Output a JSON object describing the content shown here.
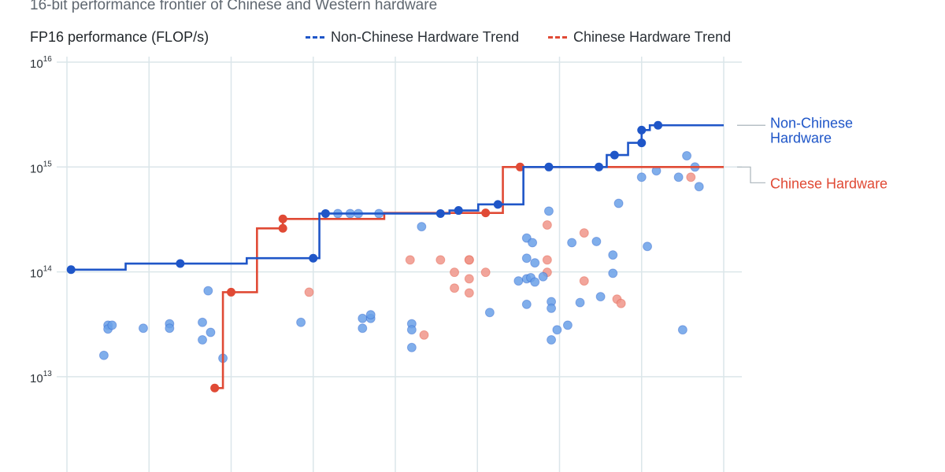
{
  "subtitle": "16-bit performance frontier of Chinese and Western hardware",
  "chart_data": {
    "type": "scatter",
    "subtitle": "16-bit performance frontier of Chinese and Western hardware",
    "ylabel": "FP16 performance (FLOP/s)",
    "yscale": "log",
    "ylim": [
      1000000000000.0,
      1e+16
    ],
    "yticks": [
      {
        "value": 10000000000000.0,
        "base": "10",
        "exp": "13"
      },
      {
        "value": 100000000000000.0,
        "base": "10",
        "exp": "14"
      },
      {
        "value": 1000000000000000.0,
        "base": "10",
        "exp": "15"
      },
      {
        "value": 1e+16,
        "base": "10",
        "exp": "16"
      }
    ],
    "xgrid_count": 9,
    "grid": true,
    "legend": {
      "placement": "top",
      "items": [
        {
          "label": "Non-Chinese Hardware Trend",
          "color": "#1f56c8",
          "style": "dashed"
        },
        {
          "label": "Chinese Hardware Trend",
          "color": "#e04a35",
          "style": "dashed"
        }
      ]
    },
    "series": [
      {
        "name": "Non-Chinese Hardware",
        "end_label": [
          "Non-Chinese",
          "Hardware"
        ],
        "color": "#1f56c8",
        "point_color": "#6aa0e8",
        "frontier": [
          {
            "x": 0.05,
            "y": 105000000000000.0
          },
          {
            "x": 1.38,
            "y": 120000000000000.0
          },
          {
            "x": 3.0,
            "y": 135000000000000.0
          },
          {
            "x": 3.15,
            "y": 360000000000000.0
          },
          {
            "x": 4.55,
            "y": 360000000000000.0
          },
          {
            "x": 4.77,
            "y": 385000000000000.0
          },
          {
            "x": 5.25,
            "y": 440000000000000.0
          },
          {
            "x": 5.87,
            "y": 1000000000000000.0
          },
          {
            "x": 6.48,
            "y": 1000000000000000.0
          },
          {
            "x": 6.67,
            "y": 1300000000000000.0
          },
          {
            "x": 7.0,
            "y": 1700000000000000.0
          },
          {
            "x": 7.0,
            "y": 2250000000000000.0
          },
          {
            "x": 7.2,
            "y": 2500000000000000.0
          }
        ],
        "frontier_end_x": 8.0,
        "points": [
          {
            "x": 0.5,
            "y": 31000000000000.0
          },
          {
            "x": 0.5,
            "y": 28500000000000.0
          },
          {
            "x": 0.55,
            "y": 31000000000000.0
          },
          {
            "x": 0.45,
            "y": 16000000000000.0
          },
          {
            "x": 0.93,
            "y": 29000000000000.0
          },
          {
            "x": 1.25,
            "y": 32000000000000.0
          },
          {
            "x": 1.25,
            "y": 29000000000000.0
          },
          {
            "x": 1.65,
            "y": 33000000000000.0
          },
          {
            "x": 1.65,
            "y": 22500000000000.0
          },
          {
            "x": 1.75,
            "y": 26500000000000.0
          },
          {
            "x": 1.72,
            "y": 66000000000000.0
          },
          {
            "x": 1.9,
            "y": 15000000000000.0
          },
          {
            "x": 2.85,
            "y": 33000000000000.0
          },
          {
            "x": 3.3,
            "y": 360000000000000.0
          },
          {
            "x": 3.45,
            "y": 360000000000000.0
          },
          {
            "x": 3.55,
            "y": 360000000000000.0
          },
          {
            "x": 3.8,
            "y": 360000000000000.0
          },
          {
            "x": 3.6,
            "y": 36000000000000.0
          },
          {
            "x": 3.6,
            "y": 29000000000000.0
          },
          {
            "x": 3.7,
            "y": 36000000000000.0
          },
          {
            "x": 3.7,
            "y": 39000000000000.0
          },
          {
            "x": 4.2,
            "y": 32000000000000.0
          },
          {
            "x": 4.2,
            "y": 28000000000000.0
          },
          {
            "x": 4.2,
            "y": 19000000000000.0
          },
          {
            "x": 4.32,
            "y": 270000000000000.0
          },
          {
            "x": 5.15,
            "y": 41000000000000.0
          },
          {
            "x": 5.5,
            "y": 82000000000000.0
          },
          {
            "x": 5.6,
            "y": 86000000000000.0
          },
          {
            "x": 5.6,
            "y": 135000000000000.0
          },
          {
            "x": 5.65,
            "y": 88000000000000.0
          },
          {
            "x": 5.7,
            "y": 80000000000000.0
          },
          {
            "x": 5.8,
            "y": 90000000000000.0
          },
          {
            "x": 5.6,
            "y": 210000000000000.0
          },
          {
            "x": 5.67,
            "y": 190000000000000.0
          },
          {
            "x": 5.7,
            "y": 122000000000000.0
          },
          {
            "x": 5.6,
            "y": 49000000000000.0
          },
          {
            "x": 5.87,
            "y": 380000000000000.0
          },
          {
            "x": 5.9,
            "y": 52000000000000.0
          },
          {
            "x": 5.9,
            "y": 45000000000000.0
          },
          {
            "x": 5.9,
            "y": 22500000000000.0
          },
          {
            "x": 5.97,
            "y": 28000000000000.0
          },
          {
            "x": 6.1,
            "y": 31000000000000.0
          },
          {
            "x": 6.15,
            "y": 190000000000000.0
          },
          {
            "x": 6.25,
            "y": 51000000000000.0
          },
          {
            "x": 6.5,
            "y": 58000000000000.0
          },
          {
            "x": 6.45,
            "y": 195000000000000.0
          },
          {
            "x": 6.65,
            "y": 145000000000000.0
          },
          {
            "x": 6.65,
            "y": 97000000000000.0
          },
          {
            "x": 6.72,
            "y": 450000000000000.0
          },
          {
            "x": 7.0,
            "y": 800000000000000.0
          },
          {
            "x": 7.07,
            "y": 175000000000000.0
          },
          {
            "x": 7.18,
            "y": 920000000000000.0
          },
          {
            "x": 7.45,
            "y": 800000000000000.0
          },
          {
            "x": 7.5,
            "y": 28000000000000.0
          },
          {
            "x": 7.55,
            "y": 1280000000000000.0
          },
          {
            "x": 7.65,
            "y": 1000000000000000.0
          },
          {
            "x": 7.7,
            "y": 650000000000000.0
          }
        ]
      },
      {
        "name": "Chinese Hardware",
        "end_label": [
          "Chinese Hardware"
        ],
        "color": "#e04a35",
        "point_color": "#f0958a",
        "frontier": [
          {
            "x": 1.8,
            "y": 7800000000000.0
          },
          {
            "x": 2.0,
            "y": 64000000000000.0
          },
          {
            "x": 2.63,
            "y": 260000000000000.0
          },
          {
            "x": 2.63,
            "y": 320000000000000.0
          },
          {
            "x": 5.1,
            "y": 365000000000000.0
          },
          {
            "x": 5.52,
            "y": 1000000000000000.0
          }
        ],
        "frontier_end_x": 8.0,
        "points": [
          {
            "x": 2.95,
            "y": 64000000000000.0
          },
          {
            "x": 4.18,
            "y": 130000000000000.0
          },
          {
            "x": 4.35,
            "y": 25000000000000.0
          },
          {
            "x": 4.55,
            "y": 130000000000000.0
          },
          {
            "x": 4.72,
            "y": 99000000000000.0
          },
          {
            "x": 4.72,
            "y": 70000000000000.0
          },
          {
            "x": 4.9,
            "y": 130000000000000.0
          },
          {
            "x": 4.9,
            "y": 130000000000000.0
          },
          {
            "x": 4.9,
            "y": 86000000000000.0
          },
          {
            "x": 4.9,
            "y": 63000000000000.0
          },
          {
            "x": 5.1,
            "y": 99000000000000.0
          },
          {
            "x": 5.85,
            "y": 130000000000000.0
          },
          {
            "x": 5.85,
            "y": 280000000000000.0
          },
          {
            "x": 5.85,
            "y": 99000000000000.0
          },
          {
            "x": 6.3,
            "y": 235000000000000.0
          },
          {
            "x": 6.3,
            "y": 82000000000000.0
          },
          {
            "x": 6.7,
            "y": 55000000000000.0
          },
          {
            "x": 6.75,
            "y": 50000000000000.0
          },
          {
            "x": 7.6,
            "y": 800000000000000.0
          }
        ]
      }
    ]
  }
}
